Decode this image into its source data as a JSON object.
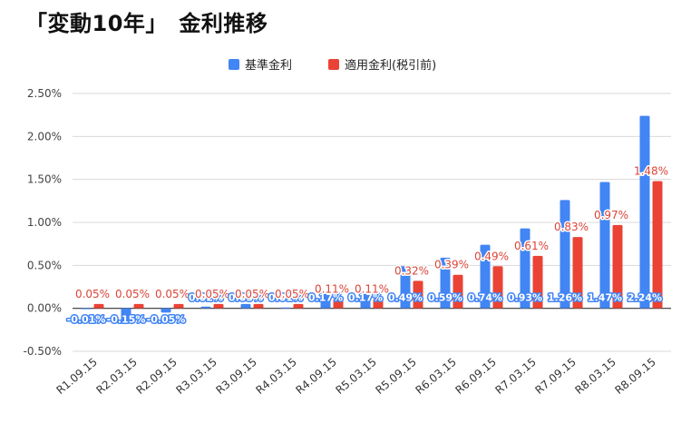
{
  "title": "「変動10年」　金利推移",
  "colors": {
    "base": "#4285f4",
    "applied": "#ea4335",
    "applied_label": "#db4437"
  },
  "chart_data": {
    "type": "bar",
    "title": "「変動10年」　金利推移",
    "xlabel": "",
    "ylabel": "",
    "ylim": [
      -0.5,
      2.5
    ],
    "yticks": [
      "2.50%",
      "2.00%",
      "1.50%",
      "1.00%",
      "0.50%",
      "0.00%",
      "-0.50%"
    ],
    "grid": true,
    "legend": "top",
    "categories": [
      "R1.09.15",
      "R2.03.15",
      "R2.09.15",
      "R3.03.15",
      "R3.09.15",
      "R4.03.15",
      "R4.09.15",
      "R5.03.15",
      "R5.09.15",
      "R6.03.15",
      "R6.09.15",
      "R7.03.15",
      "R7.09.15",
      "R8.03.15",
      "R8.09.15"
    ],
    "series": [
      {
        "name": "基準金利",
        "values": [
          -0.01,
          -0.15,
          -0.05,
          0.02,
          0.05,
          0.01,
          0.17,
          0.17,
          0.49,
          0.59,
          0.74,
          0.93,
          1.26,
          1.47,
          2.24
        ],
        "labels": [
          "-0.01%",
          "-0.15%",
          "-0.05%",
          "0.02%",
          "0.05%",
          "0.01%",
          "0.17%",
          "0.17%",
          "0.49%",
          "0.59%",
          "0.74%",
          "0.93%",
          "1.26%",
          "1.47%",
          "2.24%"
        ]
      },
      {
        "name": "適用金利(税引前)",
        "values": [
          0.05,
          0.05,
          0.05,
          0.05,
          0.05,
          0.05,
          0.11,
          0.11,
          0.32,
          0.39,
          0.49,
          0.61,
          0.83,
          0.97,
          1.48
        ],
        "labels": [
          "0.05%",
          "0.05%",
          "0.05%",
          "0.05%",
          "0.05%",
          "0.05%",
          "0.11%",
          "0.11%",
          "0.32%",
          "0.39%",
          "0.49%",
          "0.61%",
          "0.83%",
          "0.97%",
          "1.48%"
        ]
      }
    ]
  }
}
